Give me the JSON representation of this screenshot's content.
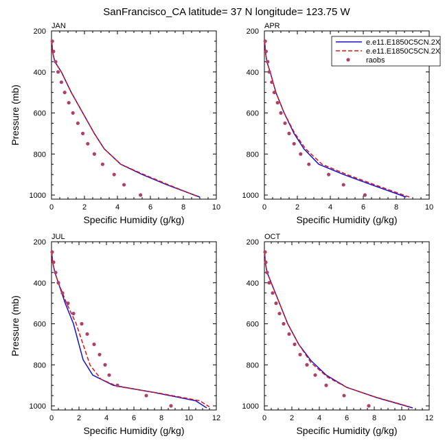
{
  "title": "SanFrancisco_CA  latitude= 37 N longitude= 123.75 W",
  "legend": {
    "entries": [
      {
        "label": "e.e11.E1850C5CN.2X",
        "style": "solid",
        "color": "#1010d8"
      },
      {
        "label": "e.e11.E1850C5CN.2X",
        "style": "dashed",
        "color": "#e01010"
      },
      {
        "label": "raobs",
        "style": "dot",
        "color": "#b0406a"
      }
    ]
  },
  "chart_data": [
    {
      "type": "line",
      "panel_label": "JAN",
      "xlabel": "Specific Humidity (g/kg)",
      "ylabel": "Pressure (mb)",
      "xlim": [
        0,
        10
      ],
      "ylim": [
        1020,
        200
      ],
      "xticks": [
        0,
        2,
        4,
        6,
        8,
        10
      ],
      "yticks": [
        200,
        400,
        600,
        800,
        1000
      ],
      "series": [
        {
          "color": "#1010d8",
          "dash": "solid",
          "points": [
            [
              0.02,
              250
            ],
            [
              0.06,
              300
            ],
            [
              0.2,
              350
            ],
            [
              0.6,
              400
            ],
            [
              1.2,
              500
            ],
            [
              1.9,
              600
            ],
            [
              2.6,
              700
            ],
            [
              3.2,
              775
            ],
            [
              4.2,
              850
            ],
            [
              5.5,
              900
            ],
            [
              7.0,
              950
            ],
            [
              9.0,
              1010
            ]
          ]
        },
        {
          "color": "#e01010",
          "dash": "dashed",
          "points": [
            [
              0.02,
              250
            ],
            [
              0.06,
              300
            ],
            [
              0.2,
              350
            ],
            [
              0.6,
              400
            ],
            [
              1.2,
              500
            ],
            [
              1.9,
              600
            ],
            [
              2.6,
              700
            ],
            [
              3.2,
              775
            ],
            [
              4.2,
              850
            ],
            [
              5.6,
              900
            ],
            [
              7.1,
              950
            ],
            [
              8.8,
              1005
            ]
          ]
        },
        {
          "color": "#b0406a",
          "dash": "dot",
          "points": [
            [
              0.05,
              250
            ],
            [
              0.12,
              300
            ],
            [
              0.25,
              350
            ],
            [
              0.4,
              400
            ],
            [
              0.6,
              450
            ],
            [
              0.8,
              500
            ],
            [
              1.05,
              550
            ],
            [
              1.3,
              600
            ],
            [
              1.6,
              650
            ],
            [
              1.9,
              700
            ],
            [
              2.2,
              750
            ],
            [
              2.6,
              800
            ],
            [
              3.1,
              850
            ],
            [
              3.8,
              900
            ],
            [
              4.4,
              950
            ],
            [
              5.4,
              1000
            ]
          ]
        }
      ]
    },
    {
      "type": "line",
      "panel_label": "APR",
      "xlabel": "Specific Humidity (g/kg)",
      "ylabel": "",
      "xlim": [
        0,
        10
      ],
      "ylim": [
        1020,
        200
      ],
      "xticks": [
        0,
        2,
        4,
        6,
        8,
        10
      ],
      "yticks": [
        200,
        400,
        600,
        800,
        1000
      ],
      "series": [
        {
          "color": "#1010d8",
          "dash": "solid",
          "points": [
            [
              0.02,
              250
            ],
            [
              0.06,
              300
            ],
            [
              0.15,
              350
            ],
            [
              0.35,
              400
            ],
            [
              0.7,
              500
            ],
            [
              1.2,
              600
            ],
            [
              1.8,
              700
            ],
            [
              2.4,
              775
            ],
            [
              3.3,
              850
            ],
            [
              4.8,
              900
            ],
            [
              6.5,
              950
            ],
            [
              8.6,
              1010
            ]
          ]
        },
        {
          "color": "#e01010",
          "dash": "dashed",
          "points": [
            [
              0.02,
              250
            ],
            [
              0.06,
              300
            ],
            [
              0.15,
              350
            ],
            [
              0.35,
              400
            ],
            [
              0.7,
              500
            ],
            [
              1.2,
              600
            ],
            [
              1.85,
              700
            ],
            [
              2.5,
              775
            ],
            [
              3.5,
              850
            ],
            [
              5.0,
              900
            ],
            [
              6.7,
              950
            ],
            [
              8.8,
              1010
            ]
          ]
        },
        {
          "color": "#b0406a",
          "dash": "dot",
          "points": [
            [
              0.05,
              250
            ],
            [
              0.1,
              300
            ],
            [
              0.2,
              350
            ],
            [
              0.3,
              400
            ],
            [
              0.45,
              450
            ],
            [
              0.6,
              500
            ],
            [
              0.8,
              550
            ],
            [
              1.0,
              600
            ],
            [
              1.25,
              650
            ],
            [
              1.5,
              700
            ],
            [
              1.8,
              750
            ],
            [
              2.2,
              800
            ],
            [
              2.7,
              850
            ],
            [
              3.9,
              900
            ],
            [
              4.8,
              950
            ],
            [
              6.1,
              1000
            ]
          ]
        }
      ]
    },
    {
      "type": "line",
      "panel_label": "JUL",
      "xlabel": "Specific Humidity (g/kg)",
      "ylabel": "Pressure (mb)",
      "xlim": [
        0,
        12
      ],
      "ylim": [
        1020,
        200
      ],
      "xticks": [
        0,
        2,
        4,
        6,
        8,
        10,
        12
      ],
      "yticks": [
        200,
        400,
        600,
        800,
        1000
      ],
      "series": [
        {
          "color": "#1010d8",
          "dash": "solid",
          "points": [
            [
              0.02,
              250
            ],
            [
              0.08,
              300
            ],
            [
              0.25,
              350
            ],
            [
              0.5,
              400
            ],
            [
              1.0,
              500
            ],
            [
              1.6,
              600
            ],
            [
              2.0,
              700
            ],
            [
              2.3,
              775
            ],
            [
              3.0,
              850
            ],
            [
              4.5,
              900
            ],
            [
              7.5,
              935
            ],
            [
              10.5,
              975
            ],
            [
              11.3,
              1010
            ]
          ]
        },
        {
          "color": "#e01010",
          "dash": "dashed",
          "points": [
            [
              0.02,
              250
            ],
            [
              0.08,
              300
            ],
            [
              0.25,
              350
            ],
            [
              0.5,
              400
            ],
            [
              1.1,
              500
            ],
            [
              1.8,
              600
            ],
            [
              2.3,
              700
            ],
            [
              2.8,
              800
            ],
            [
              3.6,
              870
            ],
            [
              4.8,
              905
            ],
            [
              8.0,
              940
            ],
            [
              10.8,
              975
            ],
            [
              11.5,
              1005
            ]
          ]
        },
        {
          "color": "#b0406a",
          "dash": "dot",
          "points": [
            [
              0.05,
              250
            ],
            [
              0.15,
              300
            ],
            [
              0.3,
              350
            ],
            [
              0.5,
              400
            ],
            [
              0.8,
              450
            ],
            [
              1.2,
              500
            ],
            [
              1.6,
              550
            ],
            [
              2.2,
              600
            ],
            [
              2.6,
              650
            ],
            [
              3.1,
              700
            ],
            [
              3.5,
              750
            ],
            [
              3.9,
              800
            ],
            [
              4.2,
              850
            ],
            [
              4.8,
              900
            ],
            [
              6.9,
              950
            ],
            [
              8.7,
              1000
            ]
          ]
        }
      ]
    },
    {
      "type": "line",
      "panel_label": "OCT",
      "xlabel": "Specific Humidity (g/kg)",
      "ylabel": "",
      "xlim": [
        0,
        12
      ],
      "ylim": [
        1020,
        200
      ],
      "xticks": [
        0,
        2,
        4,
        6,
        8,
        10,
        12
      ],
      "yticks": [
        200,
        400,
        600,
        800,
        1000
      ],
      "series": [
        {
          "color": "#1010d8",
          "dash": "solid",
          "points": [
            [
              0.02,
              250
            ],
            [
              0.06,
              300
            ],
            [
              0.2,
              350
            ],
            [
              0.5,
              400
            ],
            [
              1.1,
              500
            ],
            [
              1.7,
              600
            ],
            [
              2.5,
              700
            ],
            [
              3.4,
              780
            ],
            [
              4.5,
              850
            ],
            [
              6.0,
              910
            ],
            [
              8.2,
              960
            ],
            [
              10.8,
              1010
            ]
          ]
        },
        {
          "color": "#e01010",
          "dash": "dashed",
          "points": [
            [
              0.02,
              250
            ],
            [
              0.06,
              300
            ],
            [
              0.2,
              350
            ],
            [
              0.5,
              400
            ],
            [
              1.1,
              500
            ],
            [
              1.7,
              600
            ],
            [
              2.5,
              700
            ],
            [
              3.4,
              790
            ],
            [
              4.6,
              860
            ],
            [
              6.0,
              910
            ],
            [
              8.0,
              955
            ],
            [
              10.6,
              1005
            ]
          ]
        },
        {
          "color": "#b0406a",
          "dash": "dot",
          "points": [
            [
              0.05,
              250
            ],
            [
              0.1,
              300
            ],
            [
              0.2,
              350
            ],
            [
              0.35,
              400
            ],
            [
              0.6,
              450
            ],
            [
              0.85,
              500
            ],
            [
              1.1,
              550
            ],
            [
              1.4,
              600
            ],
            [
              1.8,
              650
            ],
            [
              2.2,
              700
            ],
            [
              2.6,
              750
            ],
            [
              3.1,
              800
            ],
            [
              3.7,
              850
            ],
            [
              4.5,
              900
            ],
            [
              5.8,
              950
            ],
            [
              7.6,
              1000
            ]
          ]
        }
      ]
    }
  ]
}
